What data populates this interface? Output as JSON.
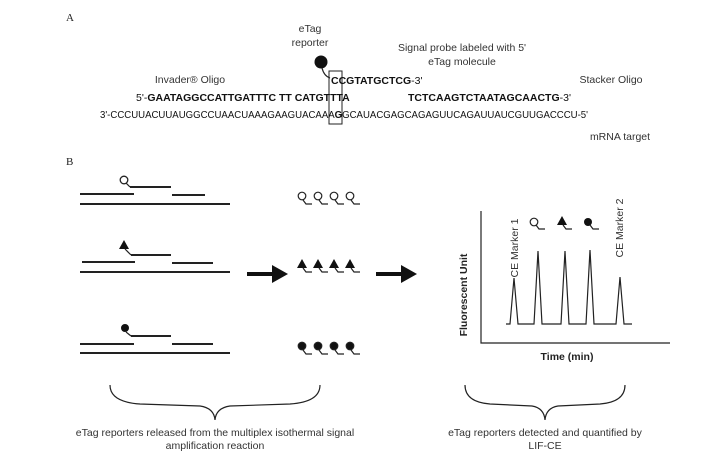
{
  "panel_a": {
    "label": "A",
    "etag_reporter_line1": "eTag",
    "etag_reporter_line2": "reporter",
    "signal_probe_line1": "Signal probe labeled with 5'",
    "signal_probe_line2": "eTag molecule",
    "invader_label": "Invader® Oligo",
    "stacker_label": "Stacker Oligo",
    "probe_seq_boxed": "C",
    "probe_seq_bold": "CGTATGCTCG",
    "probe_seq_end": "-3'",
    "invader_prefix": "5'-",
    "invader_seq": "GAATAGGCCATTGATTTC TT CATGTTTA",
    "stacker_seq": "TCTCAAGTCTAATAGCAACTG",
    "stacker_end": "-3'",
    "mrna_seq_left": "3'-CCCUUACUUAUGGCCUAACUAAAGAAGUACAAA",
    "mrna_seq_boxed": "G",
    "mrna_seq_right": "GCAUACGAGCAGAGUUCAGAUUAUCGUUGACCCU-5'",
    "mrna_label": "mRNA target"
  },
  "panel_b": {
    "label": "B",
    "reporter_types": [
      "open-circle",
      "triangle",
      "filled-circle"
    ],
    "chart": {
      "ylabel": "Fluorescent Unit",
      "xlabel": "Time (min)",
      "marker1": "CE Marker 1",
      "marker2": "CE Marker 2"
    },
    "caption_left_line1": "eTag reporters released from the multiplex isothermal signal",
    "caption_left_line2": "amplification reaction",
    "caption_right_line1": "eTag reporters detected and quantified by",
    "caption_right_line2": "LIF-CE"
  }
}
